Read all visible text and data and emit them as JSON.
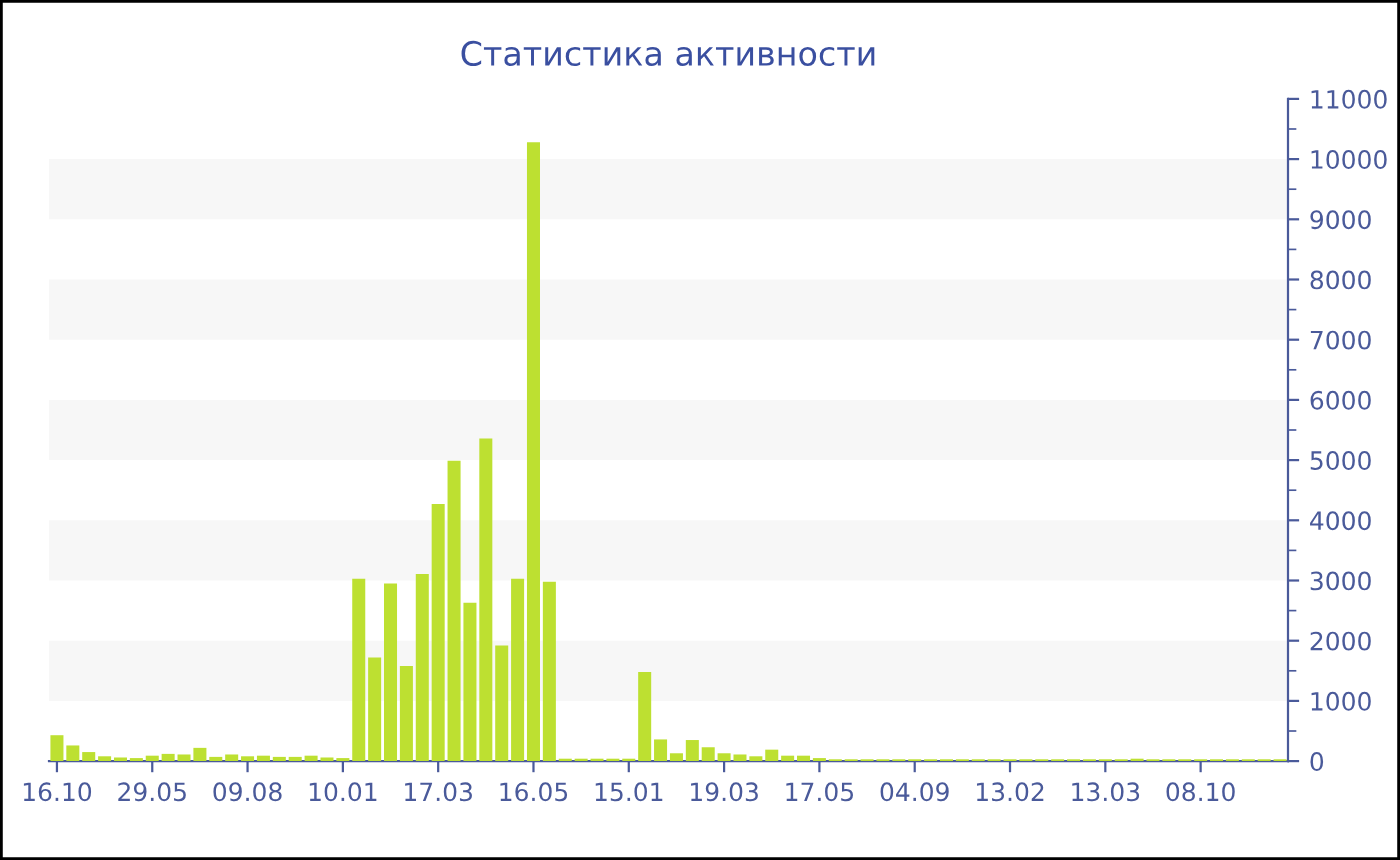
{
  "chart_data": {
    "type": "bar",
    "title": "Статистика активности",
    "categories": [
      "16.10",
      null,
      null,
      null,
      null,
      null,
      "29.05",
      null,
      null,
      null,
      null,
      null,
      "09.08",
      null,
      null,
      null,
      null,
      null,
      "10.01",
      null,
      null,
      null,
      null,
      null,
      "17.03",
      null,
      null,
      null,
      null,
      null,
      "16.05",
      null,
      null,
      null,
      null,
      null,
      "15.01",
      null,
      null,
      null,
      null,
      null,
      "19.03",
      null,
      null,
      null,
      null,
      null,
      "17.05",
      null,
      null,
      null,
      null,
      null,
      "04.09",
      null,
      null,
      null,
      null,
      null,
      "13.02",
      null,
      null,
      null,
      null,
      null,
      "13.03",
      null,
      null,
      null,
      null,
      null,
      "08.10",
      null,
      null,
      null,
      null,
      null
    ],
    "values": [
      430,
      260,
      150,
      80,
      60,
      50,
      90,
      120,
      110,
      220,
      70,
      110,
      80,
      90,
      70,
      70,
      90,
      60,
      50,
      3030,
      1720,
      2950,
      1580,
      3110,
      4270,
      4990,
      2630,
      5360,
      1920,
      3030,
      10280,
      2980,
      40,
      40,
      40,
      40,
      40,
      1480,
      360,
      130,
      350,
      230,
      130,
      110,
      80,
      190,
      90,
      90,
      50,
      30,
      30,
      30,
      30,
      30,
      30,
      30,
      30,
      30,
      30,
      30,
      30,
      30,
      30,
      30,
      30,
      30,
      30,
      30,
      40,
      30,
      30,
      30,
      30,
      30,
      30,
      30,
      30,
      30
    ],
    "color": "#bde031",
    "ylim": [
      0,
      11000
    ],
    "yticks": [
      0,
      1000,
      2000,
      3000,
      4000,
      5000,
      6000,
      7000,
      8000,
      9000,
      10000,
      11000
    ],
    "bands": [
      {
        "axis": "y",
        "from": 1000,
        "to": 2000,
        "color": "#f7f7f7"
      },
      {
        "axis": "y",
        "from": 3000,
        "to": 4000,
        "color": "#f7f7f7"
      },
      {
        "axis": "y",
        "from": 5000,
        "to": 6000,
        "color": "#f7f7f7"
      },
      {
        "axis": "y",
        "from": 7000,
        "to": 8000,
        "color": "#f7f7f7"
      },
      {
        "axis": "y",
        "from": 9000,
        "to": 10000,
        "color": "#f7f7f7"
      }
    ]
  }
}
